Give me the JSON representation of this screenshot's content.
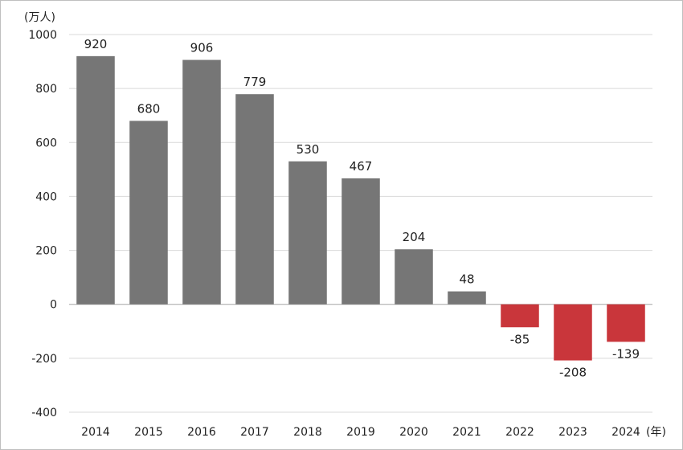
{
  "chart_data": {
    "type": "bar",
    "categories": [
      "2014",
      "2015",
      "2016",
      "2017",
      "2018",
      "2019",
      "2020",
      "2021",
      "2022",
      "2023",
      "2024"
    ],
    "values": [
      920,
      680,
      906,
      779,
      530,
      467,
      204,
      48,
      -85,
      -208,
      -139
    ],
    "data_labels": [
      "920",
      "680",
      "906",
      "779",
      "530",
      "467",
      "204",
      "48",
      "-85",
      "-208",
      "-139"
    ],
    "y_unit_label": "(万人)",
    "x_unit_label": "(年)",
    "ylim": [
      -400,
      1000
    ],
    "yticks": [
      "1000",
      "800",
      "600",
      "400",
      "200",
      "0",
      "-200",
      "-400"
    ],
    "grid": true,
    "colors": {
      "positive": "#767676",
      "negative": "#c9363b",
      "grid": "#d9d9d9",
      "zero_line": "#a6a6a6"
    }
  }
}
